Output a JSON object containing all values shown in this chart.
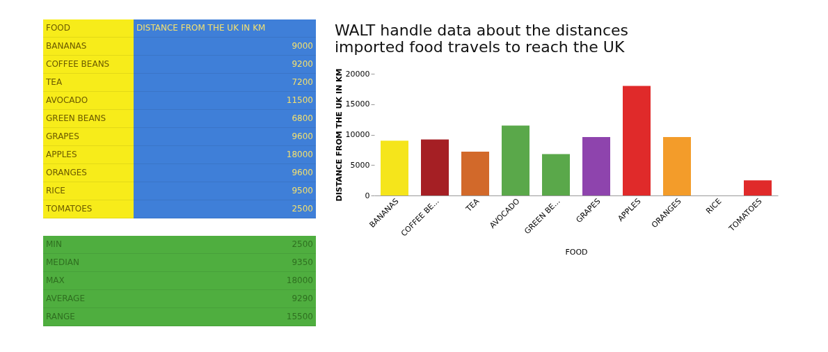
{
  "chart_data": [
    {
      "type": "other",
      "annotations": [
        "FOOD",
        "DISTANCE FROM THE UK IN KM",
        "BANANAS",
        "9000",
        "COFFEE BEANS",
        "9200",
        "TEA",
        "7200",
        "AVOCADO",
        "11500",
        "GREEN BEANS",
        "6800",
        "GRAPES",
        "9600",
        "APPLES",
        "18000",
        "ORANGES",
        "9600",
        "RICE",
        "9500",
        "TOMATOES",
        "2500"
      ]
    },
    {
      "type": "other",
      "annotations": [
        "MIN",
        "2500",
        "MEDIAN",
        "9350",
        "MAX",
        "18000",
        "AVERAGE",
        "9290",
        "RANGE",
        "15500"
      ]
    },
    {
      "type": "bar",
      "title": "WALT handle data about the distances\nimported food travels to reach the UK",
      "xlabel": "FOOD",
      "ylabel": "DISTANCE FROM THE UK IN KM",
      "categories": [
        "BANANAS",
        "COFFEE BE...",
        "TEA",
        "AVOCADO",
        "GREEN BE...",
        "GRAPES",
        "APPLES",
        "ORANGES",
        "RICE",
        "TOMATOES"
      ],
      "values": [
        9000,
        9200,
        7200,
        11500,
        6800,
        9600,
        18000,
        9600,
        null,
        2500
      ],
      "colors": [
        "#f5e51b",
        "#a51f24",
        "#d2692a",
        "#5aa84a",
        "#5aa84a",
        "#8e44ad",
        "#e02a2a",
        "#f39c2a",
        "#e02a2a",
        "#e02a2a"
      ],
      "ylim": [
        0,
        20000
      ],
      "yticks": [
        0,
        5000,
        10000,
        15000,
        20000
      ],
      "grid": false,
      "legend": false
    }
  ]
}
